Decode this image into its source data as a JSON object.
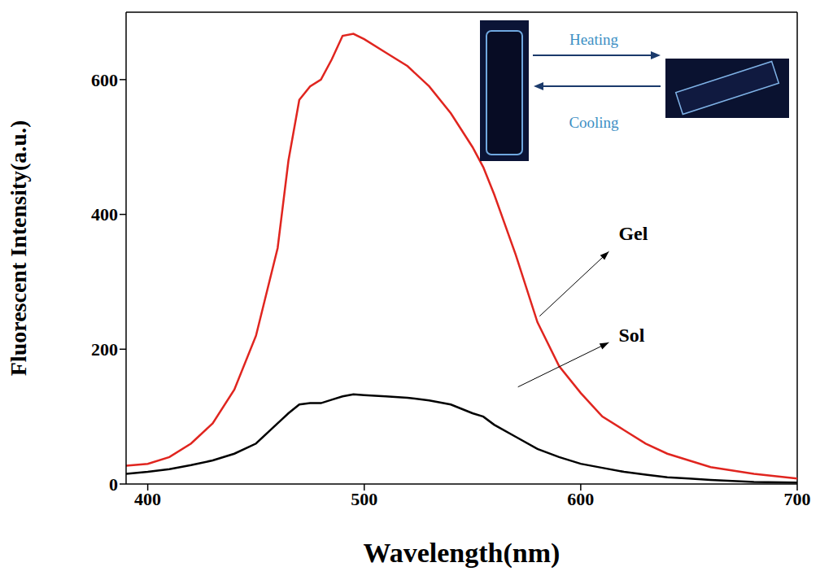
{
  "chart_data": {
    "type": "line",
    "x_label": "Wavelength(nm)",
    "y_label": "Fluorescent Intensity(a.u.)",
    "x": [
      390,
      400,
      410,
      420,
      430,
      440,
      450,
      460,
      465,
      470,
      475,
      480,
      485,
      490,
      495,
      500,
      510,
      520,
      530,
      540,
      550,
      555,
      560,
      570,
      580,
      590,
      600,
      610,
      620,
      630,
      640,
      650,
      660,
      680,
      700
    ],
    "series": [
      {
        "name": "Gel",
        "color": "#e0251f",
        "values": [
          27,
          30,
          40,
          60,
          90,
          140,
          220,
          350,
          480,
          570,
          590,
          600,
          630,
          665,
          668,
          660,
          640,
          620,
          590,
          550,
          500,
          470,
          430,
          340,
          240,
          175,
          135,
          100,
          80,
          60,
          45,
          35,
          25,
          15,
          8
        ]
      },
      {
        "name": "Sol",
        "color": "#000000",
        "values": [
          15,
          18,
          22,
          28,
          35,
          45,
          60,
          90,
          105,
          118,
          120,
          120,
          125,
          130,
          133,
          132,
          130,
          128,
          124,
          118,
          105,
          100,
          88,
          70,
          52,
          40,
          30,
          24,
          18,
          14,
          10,
          8,
          6,
          3,
          2
        ]
      }
    ],
    "xlim": [
      390,
      700
    ],
    "ylim": [
      0,
      700
    ],
    "xticks": [
      400,
      500,
      600,
      700
    ],
    "yticks": [
      0,
      200,
      400,
      600
    ],
    "grid": false,
    "annotations": [
      "Heating",
      "Cooling"
    ]
  }
}
